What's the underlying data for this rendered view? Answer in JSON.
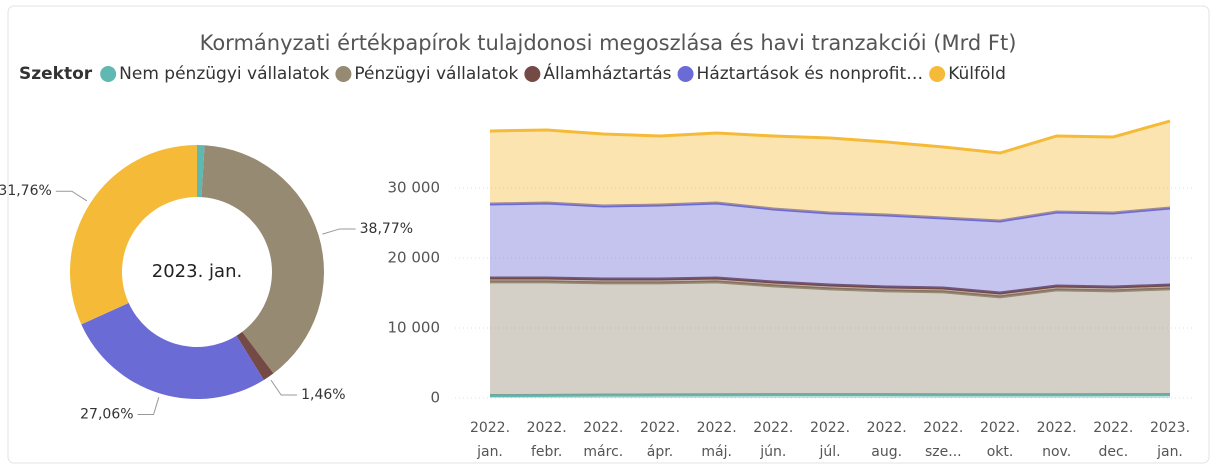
{
  "title": "Kormányzati értékpapírok tulajdonosi megoszlása és havi tranzakciói (Mrd Ft)",
  "legend_title": "Szektor",
  "chart_data": [
    {
      "type": "pie",
      "center_label": "2023. jan.",
      "values": [
        0.95,
        38.77,
        1.46,
        27.06,
        31.76
      ],
      "value_labels": [
        null,
        "38,77%",
        "1,46%",
        "27,06%",
        "31,76%"
      ]
    },
    {
      "type": "area",
      "categories": [
        "2022. jan.",
        "2022. febr.",
        "2022. márc.",
        "2022. ápr.",
        "2022. máj.",
        "2022. jún.",
        "2022. júl.",
        "2022. aug.",
        "2022. sze...",
        "2022. okt.",
        "2022. nov.",
        "2022. dec.",
        "2023. jan."
      ],
      "series": [
        {
          "name": "Nem pénzügyi vállalatok",
          "color": "#5fb8b1",
          "values": [
            350,
            370,
            420,
            450,
            470,
            480,
            480,
            480,
            470,
            460,
            470,
            480,
            500
          ]
        },
        {
          "name": "Pénzügyi vállalatok",
          "color": "#978a72",
          "values": [
            16240,
            16220,
            16030,
            16000,
            16120,
            15540,
            15110,
            14830,
            14690,
            13990,
            14980,
            14830,
            15090
          ]
        },
        {
          "name": "Államháztartás",
          "color": "#744a47",
          "values": [
            550,
            550,
            550,
            550,
            550,
            550,
            550,
            550,
            550,
            550,
            550,
            550,
            550
          ]
        },
        {
          "name": "Háztartások és nonprofit…",
          "color": "#6b6bd6",
          "values": [
            10570,
            10720,
            10430,
            10570,
            10720,
            10430,
            10290,
            10280,
            10000,
            10290,
            10570,
            10570,
            11000
          ]
        },
        {
          "name": "Külföld",
          "color": "#f5bb38",
          "values": [
            10430,
            10430,
            10280,
            9860,
            10000,
            10430,
            10710,
            10430,
            10150,
            9710,
            10860,
            10860,
            12430
          ]
        }
      ],
      "ylim": [
        0,
        40000
      ],
      "yticks": [
        0,
        {
          "value": 10000,
          "label": "10 000"
        },
        {
          "value": 20000,
          "label": "20 000"
        },
        {
          "value": 30000,
          "label": "30 000"
        }
      ],
      "grid": true
    }
  ]
}
